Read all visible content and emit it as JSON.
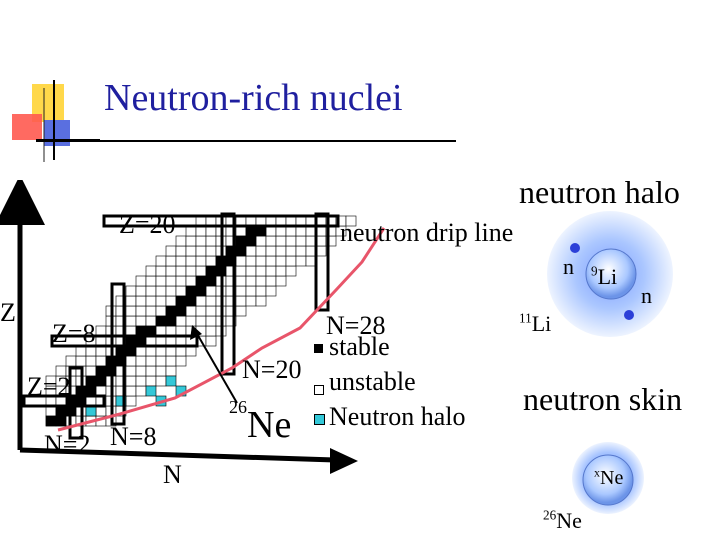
{
  "title": "Neutron-rich nuclei",
  "chart": {
    "axis_z": "Z",
    "axis_n": "N",
    "z20": "Z=20",
    "z8": "Z=8",
    "z2": "Z=2",
    "n2": "N=2",
    "n8": "N=8",
    "n20": "N=20",
    "n28": "N=28",
    "drip_line": "neutron drip line",
    "legend": {
      "stable": "stable",
      "unstable": "unstable",
      "halo": "Neutron halo"
    },
    "ne_mass": "26",
    "ne_symbol": "Ne",
    "colors": {
      "drip_line": "#e8556a",
      "halo": "#33c8d8",
      "stable": "#000000",
      "title": "#1f1f9f"
    }
  },
  "halo_panel": {
    "heading": "neutron halo",
    "n_top": "n",
    "n_bottom": "n",
    "core_mass": "9",
    "core_symbol": "Li",
    "nucleus_mass": "11",
    "nucleus_symbol": "Li"
  },
  "skin_panel": {
    "heading": "neutron skin",
    "core_mass": "x",
    "core_symbol": "Ne",
    "nucleus_mass": "26",
    "nucleus_symbol": "Ne"
  }
}
